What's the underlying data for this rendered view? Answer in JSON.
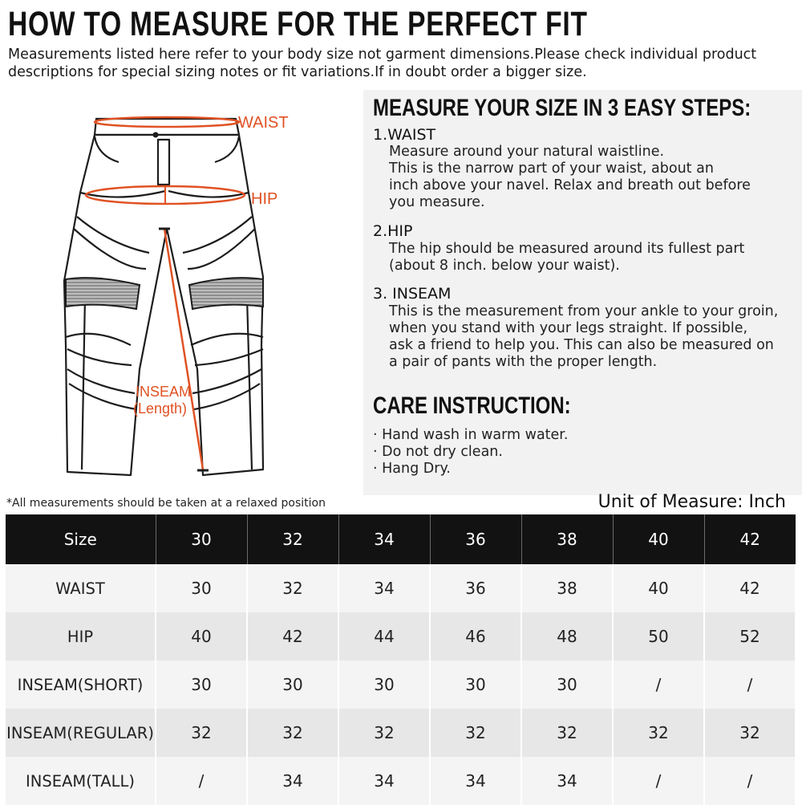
{
  "header": {
    "title": "HOW TO MEASURE FOR THE PERFECT FIT",
    "subtitle": "Measurements listed here refer to your body size not garment dimensions.Please check individual product descriptions for special sizing notes or fit variations.If in doubt order a bigger size."
  },
  "diagram": {
    "waist_label": "WAIST",
    "hip_label": "HIP",
    "inseam_label": "INSEAM",
    "inseam_sub": "(Length)",
    "accent_color": "#e05224",
    "icon": "pants-outline-icon"
  },
  "steps": {
    "heading": "MEASURE YOUR SIZE IN 3 EASY STEPS:",
    "items": [
      {
        "title": "1.WAIST",
        "lines": [
          "Measure around your natural waistline.",
          "This is the narrow part of your waist, about an",
          "inch above your navel. Relax and breath out before",
          "you measure."
        ]
      },
      {
        "title": "2.HIP",
        "lines": [
          "The hip should be measured around its fullest part",
          "(about 8 inch. below your waist)."
        ]
      },
      {
        "title": "3. INSEAM",
        "lines": [
          "This is the measurement from your ankle to your groin,",
          "when you stand with your legs straight. If possible,",
          "ask a friend to help you. This can also be measured on",
          "a pair of pants with the proper length."
        ]
      }
    ]
  },
  "care": {
    "heading": "CARE INSTRUCTION:",
    "items": [
      "· Hand wash in warm water.",
      "· Do not dry clean.",
      "· Hang Dry."
    ]
  },
  "table": {
    "note": "*All measurements should be taken at a relaxed position",
    "unit": "Unit of Measure: Inch",
    "header": [
      "Size",
      "30",
      "32",
      "34",
      "36",
      "38",
      "40",
      "42"
    ],
    "rows": [
      [
        "WAIST",
        "30",
        "32",
        "34",
        "36",
        "38",
        "40",
        "42"
      ],
      [
        "HIP",
        "40",
        "42",
        "44",
        "46",
        "48",
        "50",
        "52"
      ],
      [
        "INSEAM(SHORT)",
        "30",
        "30",
        "30",
        "30",
        "30",
        "/",
        "/"
      ],
      [
        "INSEAM(REGULAR)",
        "32",
        "32",
        "32",
        "32",
        "32",
        "32",
        "32"
      ],
      [
        "INSEAM(TALL)",
        "/",
        "34",
        "34",
        "34",
        "34",
        "/",
        "/"
      ]
    ]
  }
}
